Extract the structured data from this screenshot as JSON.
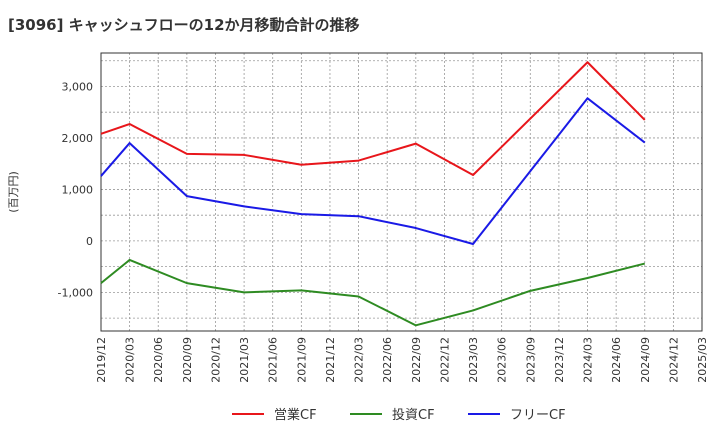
{
  "chart_data": {
    "type": "line",
    "title": "[3096]  キャッシュフローの12か月移動合計の推移",
    "ylabel": "(百万円)",
    "xlabel": "",
    "ylim": [
      -1750,
      3650
    ],
    "yticks": [
      -1000,
      0,
      1000,
      2000,
      3000
    ],
    "ytick_labels": [
      "-1,000",
      "0",
      "1,000",
      "2,000",
      "3,000"
    ],
    "x": [
      "2019/12",
      "2020/03",
      "2020/06",
      "2020/09",
      "2020/12",
      "2021/03",
      "2021/06",
      "2021/09",
      "2021/12",
      "2022/03",
      "2022/06",
      "2022/09",
      "2022/12",
      "2023/03",
      "2023/06",
      "2023/09",
      "2023/12",
      "2024/03",
      "2024/06",
      "2024/09",
      "2024/12",
      "2025/03"
    ],
    "grid": true,
    "legend_position": "bottom",
    "series": [
      {
        "name": "営業CF",
        "color": "#e8161b",
        "values": [
          2080,
          2270,
          null,
          1690,
          null,
          1670,
          null,
          1480,
          null,
          1560,
          null,
          1890,
          null,
          1280,
          null,
          null,
          null,
          3470,
          null,
          2350,
          null,
          null
        ]
      },
      {
        "name": "投資CF",
        "color": "#2e8b22",
        "values": [
          -820,
          -370,
          null,
          -820,
          null,
          -1000,
          null,
          -960,
          null,
          -1080,
          null,
          -1640,
          null,
          -1350,
          null,
          -970,
          null,
          -720,
          null,
          -440,
          null,
          null
        ]
      },
      {
        "name": "フリーCF",
        "color": "#1a1ae6",
        "values": [
          1260,
          1900,
          null,
          870,
          null,
          670,
          null,
          520,
          null,
          480,
          null,
          250,
          null,
          -60,
          null,
          null,
          null,
          2770,
          null,
          1910,
          null,
          null
        ]
      }
    ]
  }
}
